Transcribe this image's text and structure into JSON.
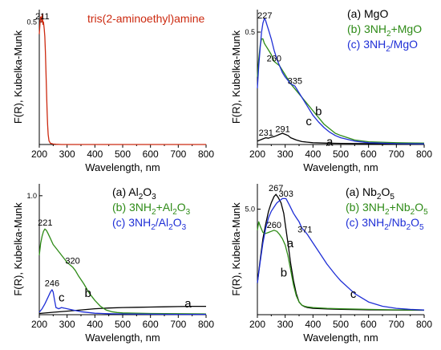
{
  "figure": {
    "xlabel": "Wavelength, nm",
    "ylabel": "F(R), Kubelka-Munk",
    "colors": {
      "black": "#000000",
      "green": "#2e8b17",
      "blue": "#1f2fd6",
      "red": "#cc2a10",
      "axis": "#000000"
    }
  },
  "chart_data": [
    {
      "type": "line",
      "xlabel": "Wavelength, nm",
      "ylabel": "F(R), Kubelka-Munk",
      "xlim": [
        200,
        800
      ],
      "ylim": [
        0,
        0.55
      ],
      "xticks": [
        "200",
        "300",
        "400",
        "500",
        "600",
        "700",
        "800"
      ],
      "yticks": [
        {
          "value": 0.5,
          "label": "0.5"
        }
      ],
      "grid": false,
      "legend": {
        "entries": [
          "tris(2-aminoethyl)amine"
        ],
        "placement": "top-right",
        "colors": [
          "#cc2a10"
        ]
      },
      "annotations": [
        {
          "text": "211",
          "x": 211,
          "y": 0.51
        }
      ],
      "series": [
        {
          "name": "tris(2-aminoethyl)amine",
          "color": "#cc2a10",
          "x": [
            200,
            203,
            205,
            207,
            209,
            211,
            213,
            215,
            218,
            220,
            222,
            224,
            226,
            228,
            230,
            232,
            235,
            240,
            250,
            260,
            280,
            300,
            400,
            500,
            600,
            700,
            800
          ],
          "y": [
            0.45,
            0.5,
            0.52,
            0.52,
            0.5,
            0.53,
            0.49,
            0.5,
            0.47,
            0.44,
            0.38,
            0.3,
            0.22,
            0.14,
            0.08,
            0.04,
            0.015,
            0.005,
            0.002,
            0.001,
            0.0,
            0.0,
            0.0,
            0.0,
            0.0,
            0.0,
            0.0
          ]
        }
      ]
    },
    {
      "type": "line",
      "xlabel": "Wavelength, nm",
      "ylabel": "F(R), Kubelka-Munk",
      "xlim": [
        200,
        800
      ],
      "ylim": [
        0,
        0.6
      ],
      "xticks": [
        "200",
        "300",
        "400",
        "500",
        "600",
        "700",
        "800"
      ],
      "yticks": [
        {
          "value": 0.5,
          "label": "0.5"
        }
      ],
      "grid": false,
      "legend": {
        "entries": [
          "(a) MgO",
          "(b) 3NH2+MgO",
          "(c) 3NH2/MgO"
        ],
        "placement": "top-right",
        "colors": [
          "#000000",
          "#2e8b17",
          "#1f2fd6"
        ]
      },
      "annotations": [
        {
          "text": "227",
          "x": 227,
          "y": 0.56
        },
        {
          "text": "260",
          "x": 260,
          "y": 0.37
        },
        {
          "text": "335",
          "x": 335,
          "y": 0.27
        },
        {
          "text": "231",
          "x": 231,
          "y": 0.04
        },
        {
          "text": "291",
          "x": 291,
          "y": 0.055
        },
        {
          "text": "a",
          "x": 460,
          "y": -0.005
        },
        {
          "text": "b",
          "x": 420,
          "y": 0.13
        },
        {
          "text": "c",
          "x": 385,
          "y": 0.085
        }
      ],
      "series": [
        {
          "name": "(a) MgO",
          "color": "#000000",
          "x": [
            200,
            210,
            220,
            230,
            240,
            250,
            260,
            270,
            280,
            290,
            300,
            310,
            320,
            340,
            360,
            400,
            450,
            500,
            600,
            700,
            800
          ],
          "y": [
            0.015,
            0.02,
            0.025,
            0.03,
            0.028,
            0.033,
            0.035,
            0.04,
            0.045,
            0.05,
            0.045,
            0.04,
            0.03,
            0.02,
            0.013,
            0.008,
            0.006,
            0.005,
            0.004,
            0.004,
            0.004
          ]
        },
        {
          "name": "(b) 3NH2+MgO",
          "color": "#2e8b17",
          "x": [
            200,
            205,
            210,
            215,
            220,
            225,
            230,
            240,
            250,
            260,
            270,
            280,
            290,
            300,
            320,
            340,
            360,
            380,
            400,
            420,
            440,
            460,
            480,
            500,
            550,
            600,
            700,
            800
          ],
          "y": [
            0.3,
            0.38,
            0.44,
            0.47,
            0.47,
            0.45,
            0.44,
            0.42,
            0.4,
            0.37,
            0.36,
            0.35,
            0.33,
            0.31,
            0.27,
            0.24,
            0.21,
            0.18,
            0.15,
            0.12,
            0.09,
            0.07,
            0.05,
            0.04,
            0.02,
            0.012,
            0.008,
            0.006
          ]
        },
        {
          "name": "(c) 3NH2/MgO",
          "color": "#1f2fd6",
          "x": [
            200,
            205,
            210,
            215,
            220,
            225,
            227,
            230,
            235,
            240,
            250,
            260,
            270,
            280,
            290,
            300,
            320,
            335,
            350,
            370,
            400,
            420,
            440,
            460,
            480,
            500,
            550,
            600,
            700,
            800
          ],
          "y": [
            0.25,
            0.35,
            0.43,
            0.5,
            0.54,
            0.56,
            0.56,
            0.55,
            0.53,
            0.51,
            0.47,
            0.42,
            0.38,
            0.35,
            0.32,
            0.3,
            0.27,
            0.26,
            0.23,
            0.19,
            0.13,
            0.1,
            0.075,
            0.055,
            0.04,
            0.03,
            0.015,
            0.008,
            0.004,
            0.003
          ]
        }
      ]
    },
    {
      "type": "line",
      "xlabel": "Wavelength, nm",
      "ylabel": "F(R), Kubelka-Munk",
      "xlim": [
        200,
        800
      ],
      "ylim": [
        0,
        1.1
      ],
      "xticks": [
        "200",
        "300",
        "400",
        "500",
        "600",
        "700",
        "800"
      ],
      "yticks": [
        {
          "value": 1.0,
          "label": "1.0"
        }
      ],
      "grid": false,
      "legend": {
        "entries": [
          "(a) Al2O3",
          "(b) 3NH2+Al2O3",
          "(c) 3NH2/Al2O3"
        ],
        "placement": "top-right",
        "colors": [
          "#000000",
          "#2e8b17",
          "#1f2fd6"
        ]
      },
      "annotations": [
        {
          "text": "221",
          "x": 221,
          "y": 0.75
        },
        {
          "text": "320",
          "x": 320,
          "y": 0.43
        },
        {
          "text": "246",
          "x": 246,
          "y": 0.24
        },
        {
          "text": "a",
          "x": 735,
          "y": 0.06
        },
        {
          "text": "b",
          "x": 375,
          "y": 0.15
        },
        {
          "text": "c",
          "x": 280,
          "y": 0.11
        }
      ],
      "series": [
        {
          "name": "(a) Al2O3",
          "color": "#000000",
          "x": [
            200,
            250,
            300,
            350,
            400,
            450,
            500,
            550,
            600,
            650,
            700,
            750,
            800
          ],
          "y": [
            0.01,
            0.02,
            0.03,
            0.04,
            0.05,
            0.056,
            0.06,
            0.062,
            0.064,
            0.066,
            0.068,
            0.07,
            0.07
          ]
        },
        {
          "name": "(b) 3NH2+Al2O3",
          "color": "#2e8b17",
          "x": [
            200,
            205,
            210,
            215,
            220,
            225,
            230,
            240,
            250,
            260,
            270,
            280,
            290,
            300,
            310,
            320,
            330,
            340,
            360,
            380,
            400,
            420,
            440,
            460,
            480,
            500,
            550,
            600,
            700,
            800
          ],
          "y": [
            0.5,
            0.6,
            0.66,
            0.7,
            0.72,
            0.71,
            0.69,
            0.64,
            0.59,
            0.56,
            0.53,
            0.5,
            0.47,
            0.44,
            0.42,
            0.4,
            0.37,
            0.33,
            0.26,
            0.18,
            0.12,
            0.07,
            0.04,
            0.025,
            0.018,
            0.015,
            0.012,
            0.01,
            0.008,
            0.006
          ]
        },
        {
          "name": "(c) 3NH2/Al2O3",
          "color": "#1f2fd6",
          "x": [
            200,
            210,
            220,
            230,
            240,
            246,
            250,
            255,
            260,
            270,
            280,
            290,
            300,
            320,
            350,
            400,
            450,
            500,
            600,
            700,
            800
          ],
          "y": [
            0.02,
            0.05,
            0.09,
            0.14,
            0.19,
            0.21,
            0.19,
            0.12,
            0.06,
            0.05,
            0.06,
            0.055,
            0.05,
            0.04,
            0.025,
            0.012,
            0.008,
            0.006,
            0.004,
            0.003,
            0.003
          ]
        }
      ]
    },
    {
      "type": "line",
      "xlabel": "Wavelength, nm",
      "ylabel": "F(R), Kubelka-Munk",
      "xlim": [
        200,
        800
      ],
      "ylim": [
        0,
        6.2
      ],
      "xticks": [
        "200",
        "300",
        "400",
        "500",
        "600",
        "700",
        "800"
      ],
      "yticks": [
        {
          "value": 5.0,
          "label": "5.0"
        }
      ],
      "grid": false,
      "legend": {
        "entries": [
          "(a) Nb2O5",
          "(b) 3NH2+Nb2O5",
          "(c) 3NH2/Nb2O5"
        ],
        "placement": "top-right",
        "colors": [
          "#000000",
          "#2e8b17",
          "#1f2fd6"
        ]
      },
      "annotations": [
        {
          "text": "267",
          "x": 267,
          "y": 5.85
        },
        {
          "text": "303",
          "x": 303,
          "y": 5.6
        },
        {
          "text": "260",
          "x": 260,
          "y": 4.1
        },
        {
          "text": "371",
          "x": 371,
          "y": 3.9
        },
        {
          "text": "a",
          "x": 318,
          "y": 3.2
        },
        {
          "text": "b",
          "x": 295,
          "y": 1.8
        },
        {
          "text": "c",
          "x": 545,
          "y": 0.8
        }
      ],
      "series": [
        {
          "name": "(a) Nb2O5",
          "color": "#000000",
          "x": [
            200,
            210,
            220,
            230,
            240,
            250,
            260,
            267,
            275,
            285,
            295,
            300,
            310,
            320,
            330,
            340,
            350,
            360,
            370,
            380,
            400,
            450,
            500,
            600,
            700,
            800
          ],
          "y": [
            1.5,
            2.6,
            3.6,
            4.3,
            4.9,
            5.3,
            5.6,
            5.7,
            5.55,
            5.3,
            4.8,
            4.3,
            3.4,
            2.4,
            1.6,
            1.0,
            0.6,
            0.45,
            0.38,
            0.34,
            0.3,
            0.27,
            0.25,
            0.23,
            0.22,
            0.21
          ]
        },
        {
          "name": "(b) 3NH2+Nb2O5",
          "color": "#2e8b17",
          "x": [
            200,
            205,
            210,
            220,
            230,
            240,
            250,
            260,
            270,
            280,
            290,
            300,
            310,
            320,
            330,
            340,
            350,
            360,
            370,
            380,
            400,
            450,
            500,
            600,
            700,
            800
          ],
          "y": [
            4.0,
            4.4,
            4.2,
            3.9,
            3.85,
            3.9,
            3.95,
            4.0,
            3.95,
            3.8,
            3.6,
            3.3,
            2.8,
            2.1,
            1.4,
            0.9,
            0.6,
            0.45,
            0.4,
            0.37,
            0.34,
            0.3,
            0.28,
            0.25,
            0.23,
            0.22
          ]
        },
        {
          "name": "(c) 3NH2/Nb2O5",
          "color": "#1f2fd6",
          "x": [
            200,
            210,
            220,
            230,
            240,
            250,
            260,
            270,
            280,
            290,
            303,
            315,
            330,
            340,
            350,
            360,
            371,
            380,
            400,
            420,
            450,
            480,
            500,
            550,
            600,
            650,
            700,
            750,
            800
          ],
          "y": [
            1.5,
            2.5,
            3.4,
            4.1,
            4.6,
            4.9,
            5.1,
            5.3,
            5.4,
            5.5,
            5.5,
            5.2,
            4.8,
            4.6,
            4.4,
            4.1,
            3.95,
            3.8,
            3.4,
            3.0,
            2.4,
            1.9,
            1.6,
            1.0,
            0.6,
            0.4,
            0.3,
            0.25,
            0.22
          ]
        }
      ]
    }
  ]
}
